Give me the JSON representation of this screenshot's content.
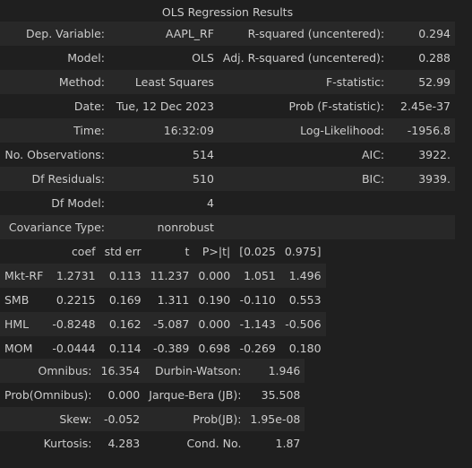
{
  "title": "OLS Regression Results",
  "summary": [
    [
      "Dep. Variable:",
      "AAPL_RF",
      "R-squared (uncentered):",
      "0.294"
    ],
    [
      "Model:",
      "OLS",
      "Adj. R-squared (uncentered):",
      "0.288"
    ],
    [
      "Method:",
      "Least Squares",
      "F-statistic:",
      "52.99"
    ],
    [
      "Date:",
      "Tue, 12 Dec 2023",
      "Prob (F-statistic):",
      "2.45e-37"
    ],
    [
      "Time:",
      "16:32:09",
      "Log-Likelihood:",
      "-1956.8"
    ],
    [
      "No. Observations:",
      "514",
      "AIC:",
      "3922."
    ],
    [
      "Df Residuals:",
      "510",
      "BIC:",
      "3939."
    ],
    [
      "Df Model:",
      "4",
      "",
      ""
    ],
    [
      "Covariance Type:",
      "nonrobust",
      "",
      ""
    ]
  ],
  "coef_headers": [
    "",
    "coef",
    "std err",
    "t",
    "P>|t|",
    "[0.025",
    "0.975]"
  ],
  "coef_rows": [
    [
      "Mkt-RF",
      "1.2731",
      "0.113",
      "11.237",
      "0.000",
      "1.051",
      "1.496"
    ],
    [
      "SMB",
      "0.2215",
      "0.169",
      "1.311",
      "0.190",
      "-0.110",
      "0.553"
    ],
    [
      "HML",
      "-0.8248",
      "0.162",
      "-5.087",
      "0.000",
      "-1.143",
      "-0.506"
    ],
    [
      "MOM",
      "-0.0444",
      "0.114",
      "-0.389",
      "0.698",
      "-0.269",
      "0.180"
    ]
  ],
  "diagnostics": [
    [
      "Omnibus:",
      "16.354",
      "Durbin-Watson:",
      "1.946"
    ],
    [
      "Prob(Omnibus):",
      "0.000",
      "Jarque-Bera (JB):",
      "35.508"
    ],
    [
      "Skew:",
      "-0.052",
      "Prob(JB):",
      "1.95e-08"
    ],
    [
      "Kurtosis:",
      "4.283",
      "Cond. No.",
      "1.87"
    ]
  ]
}
